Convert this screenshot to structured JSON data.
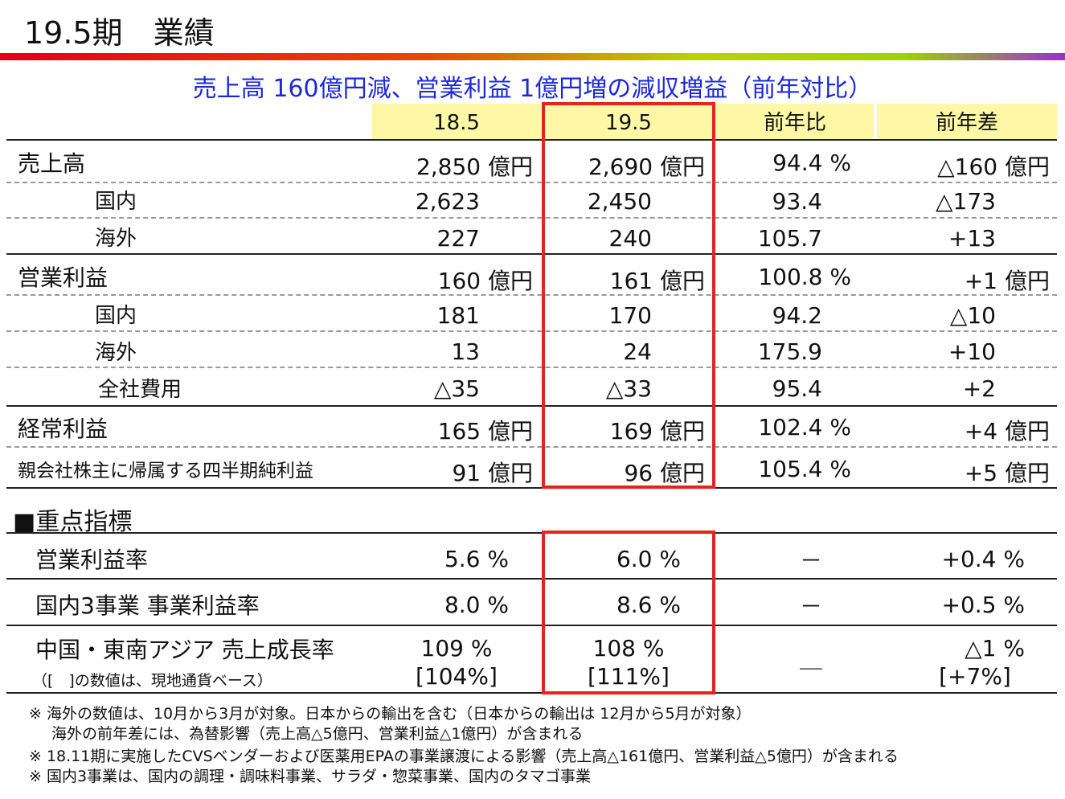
{
  "title": "19.5期　業績",
  "subtitle": "売上高 160億円減、営業利益 1億円増の減収増益（前年対比）",
  "colors": {
    "highlight_border": "#e8231d",
    "header_fill": "#fdf7a6",
    "subtitle_text": "#1c28d8"
  },
  "header": {
    "c1": "18.5",
    "c2": "19.5",
    "c3": "前年比",
    "c4": "前年差"
  },
  "rows": [
    {
      "label": "売上高",
      "c1": "2,850 億円",
      "c2": "2,690 億円",
      "c3": "94.4 %",
      "c4": "△160 億円"
    },
    {
      "label": "国内",
      "c1": "2,623",
      "c2": "2,450",
      "c3": "93.4",
      "c4": "△173"
    },
    {
      "label": "海外",
      "c1": "227",
      "c2": "240",
      "c3": "105.7",
      "c4": "+13"
    },
    {
      "label": "営業利益",
      "c1": "160 億円",
      "c2": "161 億円",
      "c3": "100.8 %",
      "c4": "+1 億円"
    },
    {
      "label": "国内",
      "c1": "181",
      "c2": "170",
      "c3": "94.2",
      "c4": "△10"
    },
    {
      "label": "海外",
      "c1": "13",
      "c2": "24",
      "c3": "175.9",
      "c4": "+10"
    },
    {
      "label": "全社費用",
      "c1": "△35",
      "c2": "△33",
      "c3": "95.4",
      "c4": "+2"
    },
    {
      "label": "経常利益",
      "c1": "165 億円",
      "c2": "169 億円",
      "c3": "102.4 %",
      "c4": "+4 億円"
    },
    {
      "label": "親会社株主に帰属する四半期純利益",
      "c1": "91 億円",
      "c2": "96 億円",
      "c3": "105.4 %",
      "c4": "+5 億円"
    }
  ],
  "kpi": {
    "heading": "■重点指標",
    "rows": [
      {
        "label": "営業利益率",
        "c1": "5.6 %",
        "c2": "6.0 %",
        "c3": "－",
        "c4": "+0.4 %"
      },
      {
        "label": "国内3事業 事業利益率",
        "c1": "8.0 %",
        "c2": "8.6 %",
        "c3": "－",
        "c4": "+0.5 %"
      },
      {
        "label": "中国・東南アジア 売上成長率",
        "sublabel": "（[　]の数値は、現地通貨ベース）",
        "c1": "109 %",
        "c1b": "[104%]",
        "c2": "108 %",
        "c2b": "[111%]",
        "c3": "＿",
        "c4": "△1 %",
        "c4b": "[+7%]"
      }
    ]
  },
  "notes": [
    "※ 海外の数値は、10月から3月が対象。日本からの輸出を含む（日本からの輸出は 12月から5月が対象）",
    "海外の前年差には、為替影響（売上高△5億円、営業利益△1億円）が含まれる",
    "※ 18.11期に実施したCVSベンダーおよび医薬用EPAの事業譲渡による影響（売上高△161億円、営業利益△5億円）が含まれる",
    "※ 国内3事業は、国内の調理・調味料事業、サラダ・惣菜事業、国内のタマゴ事業"
  ]
}
